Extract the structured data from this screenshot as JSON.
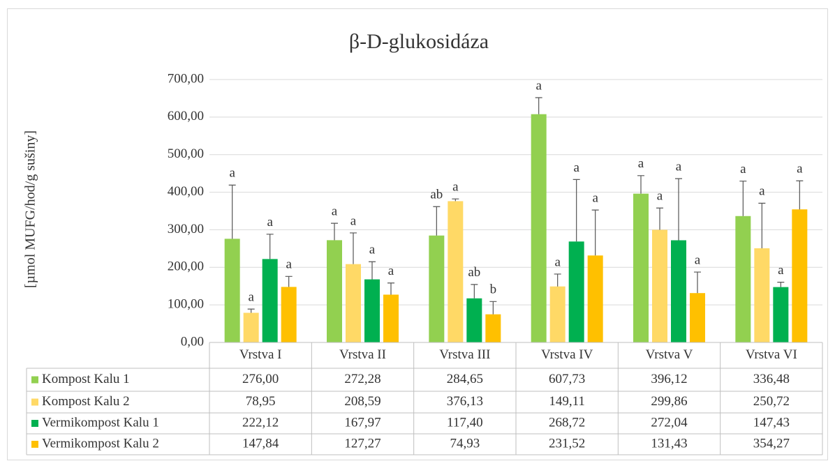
{
  "chart_data": {
    "type": "bar",
    "title": "β-D-glukosidáza",
    "y_label": "[µmol MUFG/hod/g sušiny]",
    "categories": [
      "Vrstva I",
      "Vrstva II",
      "Vrstva III",
      "Vrstva IV",
      "Vrstva V",
      "Vrstva VI"
    ],
    "ylim": [
      0,
      700
    ],
    "yticks": [
      {
        "value": 0,
        "label": "0,00"
      },
      {
        "value": 100,
        "label": "100,00"
      },
      {
        "value": 200,
        "label": "200,00"
      },
      {
        "value": 300,
        "label": "300,00"
      },
      {
        "value": 400,
        "label": "400,00"
      },
      {
        "value": 500,
        "label": "500,00"
      },
      {
        "value": 600,
        "label": "600,00"
      },
      {
        "value": 700,
        "label": "700,00"
      }
    ],
    "grid": true,
    "series": [
      {
        "name": "Kompost Kalu 1",
        "color": "#92d050",
        "values": [
          276.0,
          272.28,
          284.65,
          607.73,
          396.12,
          336.48
        ],
        "value_labels": [
          "276,00",
          "272,28",
          "284,65",
          "607,73",
          "396,12",
          "336,48"
        ],
        "errors": [
          143,
          45,
          77,
          44,
          48,
          93
        ],
        "annotations": [
          "a",
          "a",
          "ab",
          "a",
          "a",
          "a"
        ]
      },
      {
        "name": "Kompost Kalu 2",
        "color": "#ffd966",
        "values": [
          78.95,
          208.59,
          376.13,
          149.11,
          299.86,
          250.72
        ],
        "value_labels": [
          "78,95",
          "208,59",
          "376,13",
          "149,11",
          "299,86",
          "250,72"
        ],
        "errors": [
          10,
          83,
          6,
          33,
          58,
          120
        ],
        "annotations": [
          "a",
          "a",
          "a",
          "a",
          "a",
          "a"
        ]
      },
      {
        "name": "Vermikompost Kalu 1",
        "color": "#00b050",
        "values": [
          222.12,
          167.97,
          117.4,
          268.72,
          272.04,
          147.43
        ],
        "value_labels": [
          "222,12",
          "167,97",
          "117,40",
          "268,72",
          "272,04",
          "147,43"
        ],
        "errors": [
          66,
          47,
          37,
          165,
          164,
          13
        ],
        "annotations": [
          "a",
          "a",
          "ab",
          "a",
          "a",
          "a"
        ]
      },
      {
        "name": "Vermikompost Kalu 2",
        "color": "#ffc000",
        "values": [
          147.84,
          127.27,
          74.93,
          231.52,
          131.43,
          354.27
        ],
        "value_labels": [
          "147,84",
          "127,27",
          "74,93",
          "231,52",
          "131,43",
          "354,27"
        ],
        "errors": [
          28,
          31,
          34,
          121,
          56,
          76
        ],
        "annotations": [
          "a",
          "a",
          "b",
          "a",
          "a",
          "a"
        ]
      }
    ]
  }
}
